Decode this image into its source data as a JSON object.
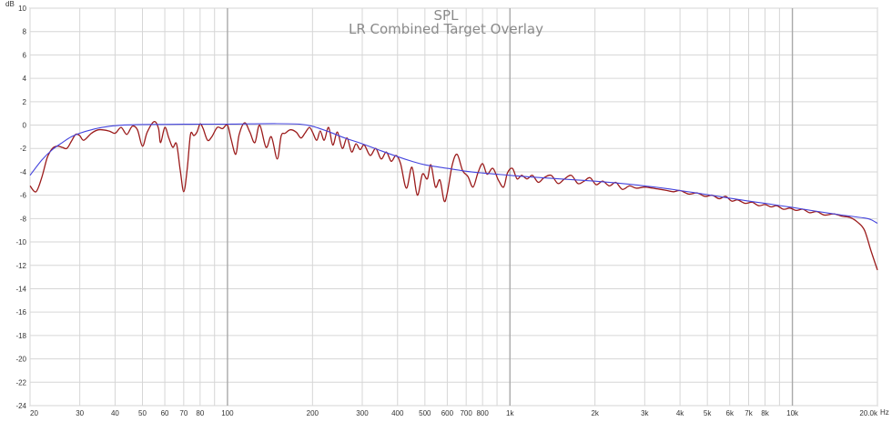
{
  "chart_data": {
    "type": "line",
    "title": "SPL",
    "subtitle": "LR Combined Target Overlay",
    "ylabel": "dB",
    "xunit": "Hz",
    "xscale": "log",
    "xlim": [
      20,
      20000
    ],
    "ylim": [
      -24,
      10
    ],
    "grid": true,
    "y_ticks": [
      10,
      8,
      6,
      4,
      2,
      0,
      -2,
      -4,
      -6,
      -8,
      -10,
      -12,
      -14,
      -16,
      -18,
      -20,
      -22,
      -24
    ],
    "x_ticks": [
      {
        "v": 20,
        "label": "20"
      },
      {
        "v": 30,
        "label": "30"
      },
      {
        "v": 40,
        "label": "40"
      },
      {
        "v": 50,
        "label": "50"
      },
      {
        "v": 60,
        "label": "60"
      },
      {
        "v": 70,
        "label": "70"
      },
      {
        "v": 80,
        "label": "80"
      },
      {
        "v": 100,
        "label": "100"
      },
      {
        "v": 200,
        "label": "200"
      },
      {
        "v": 300,
        "label": "300"
      },
      {
        "v": 400,
        "label": "400"
      },
      {
        "v": 500,
        "label": "500"
      },
      {
        "v": 600,
        "label": "600"
      },
      {
        "v": 700,
        "label": "700"
      },
      {
        "v": 800,
        "label": "800"
      },
      {
        "v": 1000,
        "label": "1k"
      },
      {
        "v": 2000,
        "label": "2k"
      },
      {
        "v": 3000,
        "label": "3k"
      },
      {
        "v": 4000,
        "label": "4k"
      },
      {
        "v": 5000,
        "label": "5k"
      },
      {
        "v": 6000,
        "label": "6k"
      },
      {
        "v": 7000,
        "label": "7k"
      },
      {
        "v": 8000,
        "label": "8k"
      },
      {
        "v": 10000,
        "label": "10k"
      },
      {
        "v": 20000,
        "label": "20.0k"
      }
    ],
    "series": [
      {
        "color": "#9b1b1b",
        "points": [
          [
            20,
            -5.2
          ],
          [
            21,
            -5.7
          ],
          [
            22,
            -4.5
          ],
          [
            23,
            -2.8
          ],
          [
            24,
            -2.0
          ],
          [
            25,
            -1.8
          ],
          [
            26,
            -1.9
          ],
          [
            27,
            -2.0
          ],
          [
            28,
            -1.4
          ],
          [
            29,
            -0.8
          ],
          [
            30,
            -0.9
          ],
          [
            31,
            -1.3
          ],
          [
            33,
            -0.7
          ],
          [
            35,
            -0.4
          ],
          [
            38,
            -0.5
          ],
          [
            40,
            -0.7
          ],
          [
            42,
            -0.2
          ],
          [
            44,
            -0.8
          ],
          [
            46,
            -0.1
          ],
          [
            48,
            -0.4
          ],
          [
            50,
            -1.8
          ],
          [
            52,
            -0.6
          ],
          [
            55,
            0.3
          ],
          [
            57,
            -0.3
          ],
          [
            58,
            -1.5
          ],
          [
            60,
            -0.2
          ],
          [
            62,
            -1.1
          ],
          [
            64,
            -1.9
          ],
          [
            66,
            -1.6
          ],
          [
            68,
            -3.8
          ],
          [
            70,
            -5.7
          ],
          [
            72,
            -3.8
          ],
          [
            74,
            -0.8
          ],
          [
            76,
            -0.9
          ],
          [
            78,
            -0.6
          ],
          [
            80,
            0.1
          ],
          [
            82,
            -0.3
          ],
          [
            85,
            -1.3
          ],
          [
            88,
            -1.0
          ],
          [
            92,
            -0.2
          ],
          [
            96,
            -0.3
          ],
          [
            100,
            0.0
          ],
          [
            103,
            -1.2
          ],
          [
            107,
            -2.5
          ],
          [
            110,
            -0.8
          ],
          [
            115,
            0.2
          ],
          [
            120,
            -0.6
          ],
          [
            125,
            -1.5
          ],
          [
            130,
            0.0
          ],
          [
            137,
            -1.9
          ],
          [
            143,
            -1.0
          ],
          [
            150,
            -2.9
          ],
          [
            155,
            -0.9
          ],
          [
            160,
            -0.7
          ],
          [
            167,
            -0.4
          ],
          [
            175,
            -0.6
          ],
          [
            182,
            -1.1
          ],
          [
            188,
            -0.7
          ],
          [
            195,
            -0.2
          ],
          [
            200,
            -0.6
          ],
          [
            207,
            -1.3
          ],
          [
            213,
            -0.5
          ],
          [
            220,
            -1.3
          ],
          [
            228,
            -0.2
          ],
          [
            236,
            -1.7
          ],
          [
            245,
            -0.6
          ],
          [
            255,
            -2.0
          ],
          [
            265,
            -1.1
          ],
          [
            275,
            -2.3
          ],
          [
            285,
            -1.6
          ],
          [
            295,
            -2.1
          ],
          [
            305,
            -1.7
          ],
          [
            320,
            -2.6
          ],
          [
            335,
            -2.0
          ],
          [
            350,
            -2.9
          ],
          [
            365,
            -2.3
          ],
          [
            380,
            -3.1
          ],
          [
            395,
            -2.6
          ],
          [
            410,
            -3.3
          ],
          [
            430,
            -5.4
          ],
          [
            450,
            -3.6
          ],
          [
            470,
            -6.0
          ],
          [
            490,
            -4.2
          ],
          [
            510,
            -4.6
          ],
          [
            525,
            -3.4
          ],
          [
            545,
            -5.3
          ],
          [
            565,
            -4.7
          ],
          [
            585,
            -6.5
          ],
          [
            600,
            -5.8
          ],
          [
            625,
            -3.4
          ],
          [
            650,
            -2.5
          ],
          [
            680,
            -3.9
          ],
          [
            710,
            -4.4
          ],
          [
            740,
            -5.3
          ],
          [
            770,
            -4.1
          ],
          [
            800,
            -3.3
          ],
          [
            830,
            -4.2
          ],
          [
            870,
            -3.7
          ],
          [
            910,
            -4.7
          ],
          [
            950,
            -5.3
          ],
          [
            980,
            -4.1
          ],
          [
            1020,
            -3.7
          ],
          [
            1060,
            -4.6
          ],
          [
            1100,
            -4.3
          ],
          [
            1150,
            -4.6
          ],
          [
            1200,
            -4.3
          ],
          [
            1260,
            -4.9
          ],
          [
            1320,
            -4.5
          ],
          [
            1400,
            -4.3
          ],
          [
            1480,
            -5.0
          ],
          [
            1560,
            -4.6
          ],
          [
            1650,
            -4.3
          ],
          [
            1740,
            -5.0
          ],
          [
            1830,
            -4.8
          ],
          [
            1920,
            -4.5
          ],
          [
            2020,
            -5.1
          ],
          [
            2130,
            -4.8
          ],
          [
            2250,
            -5.2
          ],
          [
            2370,
            -4.9
          ],
          [
            2500,
            -5.5
          ],
          [
            2650,
            -5.2
          ],
          [
            2800,
            -5.4
          ],
          [
            3000,
            -5.3
          ],
          [
            3200,
            -5.4
          ],
          [
            3400,
            -5.5
          ],
          [
            3600,
            -5.6
          ],
          [
            3800,
            -5.7
          ],
          [
            4000,
            -5.6
          ],
          [
            4300,
            -5.9
          ],
          [
            4600,
            -5.8
          ],
          [
            4900,
            -6.1
          ],
          [
            5200,
            -6.0
          ],
          [
            5500,
            -6.3
          ],
          [
            5800,
            -6.1
          ],
          [
            6100,
            -6.5
          ],
          [
            6400,
            -6.4
          ],
          [
            6800,
            -6.7
          ],
          [
            7200,
            -6.6
          ],
          [
            7600,
            -6.9
          ],
          [
            8000,
            -6.8
          ],
          [
            8400,
            -7.0
          ],
          [
            8800,
            -6.9
          ],
          [
            9300,
            -7.2
          ],
          [
            9800,
            -7.1
          ],
          [
            10300,
            -7.3
          ],
          [
            10900,
            -7.2
          ],
          [
            11500,
            -7.5
          ],
          [
            12200,
            -7.4
          ],
          [
            13000,
            -7.7
          ],
          [
            14000,
            -7.6
          ],
          [
            15000,
            -7.8
          ],
          [
            16000,
            -7.9
          ],
          [
            17000,
            -8.3
          ],
          [
            18000,
            -9.0
          ],
          [
            19000,
            -10.8
          ],
          [
            20000,
            -12.4
          ]
        ]
      },
      {
        "color": "#4444dd",
        "points": [
          [
            20,
            -4.3
          ],
          [
            22,
            -3.0
          ],
          [
            24,
            -2.1
          ],
          [
            26,
            -1.5
          ],
          [
            28,
            -1.0
          ],
          [
            30,
            -0.7
          ],
          [
            33,
            -0.4
          ],
          [
            36,
            -0.2
          ],
          [
            40,
            -0.05
          ],
          [
            45,
            0.02
          ],
          [
            50,
            0.05
          ],
          [
            60,
            0.06
          ],
          [
            70,
            0.07
          ],
          [
            80,
            0.08
          ],
          [
            100,
            0.08
          ],
          [
            120,
            0.1
          ],
          [
            150,
            0.12
          ],
          [
            180,
            0.08
          ],
          [
            200,
            -0.1
          ],
          [
            230,
            -0.6
          ],
          [
            260,
            -1.1
          ],
          [
            300,
            -1.6
          ],
          [
            350,
            -2.2
          ],
          [
            400,
            -2.7
          ],
          [
            450,
            -3.1
          ],
          [
            500,
            -3.4
          ],
          [
            600,
            -3.7
          ],
          [
            700,
            -3.95
          ],
          [
            800,
            -4.1
          ],
          [
            1000,
            -4.3
          ],
          [
            1200,
            -4.45
          ],
          [
            1500,
            -4.6
          ],
          [
            2000,
            -4.8
          ],
          [
            2500,
            -5.0
          ],
          [
            3000,
            -5.2
          ],
          [
            3500,
            -5.4
          ],
          [
            4000,
            -5.6
          ],
          [
            5000,
            -5.95
          ],
          [
            6000,
            -6.25
          ],
          [
            7000,
            -6.5
          ],
          [
            8000,
            -6.7
          ],
          [
            10000,
            -7.05
          ],
          [
            12000,
            -7.35
          ],
          [
            15000,
            -7.7
          ],
          [
            18000,
            -7.95
          ],
          [
            19000,
            -8.1
          ],
          [
            20000,
            -8.4
          ]
        ]
      }
    ]
  }
}
